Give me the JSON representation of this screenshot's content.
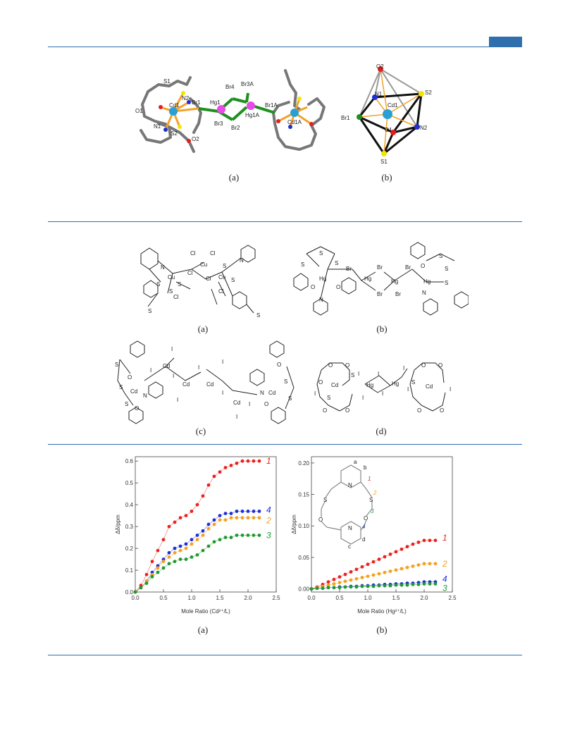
{
  "fig1": {
    "caption_a": "(a)",
    "caption_b": "(b)",
    "labels_a": {
      "s1": "S1",
      "n2": "N2",
      "cd1": "Cd1",
      "o1": "O1",
      "br1": "Br1",
      "hg1": "Hg1",
      "br4": "Br4",
      "br3a": "Br3A",
      "hg1a": "Hg1A",
      "br1a": "Br1A",
      "cd1a": "Cd1A",
      "br3": "Br3",
      "br2": "Br2",
      "n1": "N1",
      "s2": "S2",
      "o2": "O2"
    },
    "labels_b": {
      "o2": "O2",
      "n1": "N1",
      "s2": "S2",
      "cd1": "Cd1",
      "br1": "Br1",
      "o1": "O1",
      "n2": "N2",
      "s1": "S1"
    },
    "colors": {
      "bond": "#777777",
      "cd": "#2a9fd6",
      "hg": "#e64ce6",
      "br": "#1f8f1f",
      "s": "#f2e600",
      "n": "#1f2fd0",
      "o": "#e02020",
      "metal_bond": "#f2a22a"
    }
  },
  "fig2": {
    "caption_a": "(a)",
    "caption_b": "(b)",
    "caption_c": "(c)",
    "caption_d": "(d)",
    "a": {
      "cl": "Cl",
      "cu": "Cu",
      "s": "S",
      "n": "N"
    },
    "b": {
      "br": "Br",
      "hg": "Hg",
      "s": "S",
      "o": "O",
      "n": "N"
    },
    "c": {
      "i": "I",
      "cd": "Cd",
      "s": "S",
      "o": "O",
      "n": "N"
    },
    "d": {
      "i": "I",
      "cd": "Cd",
      "hg": "Hg",
      "s": "S",
      "o": "O"
    }
  },
  "fig3": {
    "caption_a": "(a)",
    "caption_b": "(b)",
    "inset_labels": {
      "a": "a",
      "b": "b",
      "c": "c",
      "d": "d",
      "n": "N",
      "s": "S",
      "o": "O",
      "n1": "1",
      "n2": "2",
      "n3": "3",
      "n4": "4"
    }
  },
  "chart_data": [
    {
      "type": "scatter",
      "title": "",
      "xlabel": "Mole Ratio (Cd²⁺/L)",
      "ylabel": "Δδ/ppm",
      "xlim": [
        0.0,
        2.5
      ],
      "ylim": [
        0.0,
        0.62
      ],
      "xticks": [
        "0.0",
        "0.5",
        "1.0",
        "1.5",
        "2.0",
        "2.5"
      ],
      "yticks": [
        "0.0",
        "0.1",
        "0.2",
        "0.3",
        "0.4",
        "0.5",
        "0.6"
      ],
      "grid": false,
      "x": [
        0.0,
        0.1,
        0.2,
        0.3,
        0.4,
        0.5,
        0.6,
        0.7,
        0.8,
        0.9,
        1.0,
        1.1,
        1.2,
        1.3,
        1.4,
        1.5,
        1.6,
        1.7,
        1.8,
        1.9,
        2.0,
        2.1,
        2.2
      ],
      "series": [
        {
          "name": "1",
          "color": "#e8231f",
          "values": [
            0.0,
            0.03,
            0.08,
            0.14,
            0.19,
            0.24,
            0.3,
            0.32,
            0.34,
            0.35,
            0.37,
            0.4,
            0.44,
            0.49,
            0.53,
            0.55,
            0.57,
            0.58,
            0.59,
            0.6,
            0.6,
            0.6,
            0.6
          ]
        },
        {
          "name": "4",
          "color": "#1f2fd8",
          "values": [
            0.0,
            0.02,
            0.05,
            0.09,
            0.12,
            0.15,
            0.18,
            0.2,
            0.21,
            0.22,
            0.24,
            0.26,
            0.28,
            0.31,
            0.33,
            0.35,
            0.36,
            0.36,
            0.37,
            0.37,
            0.37,
            0.37,
            0.37
          ]
        },
        {
          "name": "2",
          "color": "#f4a11f",
          "values": [
            0.0,
            0.02,
            0.05,
            0.08,
            0.11,
            0.14,
            0.16,
            0.18,
            0.19,
            0.2,
            0.22,
            0.24,
            0.26,
            0.29,
            0.31,
            0.33,
            0.33,
            0.34,
            0.34,
            0.34,
            0.34,
            0.34,
            0.34
          ]
        },
        {
          "name": "3",
          "color": "#1f9a2f",
          "values": [
            0.0,
            0.02,
            0.04,
            0.07,
            0.09,
            0.11,
            0.13,
            0.14,
            0.15,
            0.15,
            0.16,
            0.17,
            0.19,
            0.21,
            0.23,
            0.24,
            0.25,
            0.25,
            0.26,
            0.26,
            0.26,
            0.26,
            0.26
          ]
        }
      ]
    },
    {
      "type": "scatter",
      "title": "",
      "xlabel": "Mole Ratio (Hg²⁺/L)",
      "ylabel": "Δδ/ppm",
      "xlim": [
        0.0,
        2.5
      ],
      "ylim": [
        -0.005,
        0.21
      ],
      "xticks": [
        "0.0",
        "0.5",
        "1.0",
        "1.5",
        "2.0",
        "2.5"
      ],
      "yticks": [
        "0.00",
        "0.05",
        "0.10",
        "0.15",
        "0.20"
      ],
      "grid": false,
      "x": [
        0.0,
        0.1,
        0.2,
        0.3,
        0.4,
        0.5,
        0.6,
        0.7,
        0.8,
        0.9,
        1.0,
        1.1,
        1.2,
        1.3,
        1.4,
        1.5,
        1.6,
        1.7,
        1.8,
        1.9,
        2.0,
        2.1,
        2.2
      ],
      "series": [
        {
          "name": "1",
          "color": "#e8231f",
          "values": [
            0.0,
            0.003,
            0.007,
            0.011,
            0.015,
            0.019,
            0.023,
            0.027,
            0.031,
            0.035,
            0.039,
            0.043,
            0.047,
            0.051,
            0.055,
            0.059,
            0.063,
            0.067,
            0.071,
            0.074,
            0.077,
            0.077,
            0.077
          ]
        },
        {
          "name": "2",
          "color": "#f4a11f",
          "values": [
            0.0,
            0.002,
            0.004,
            0.006,
            0.008,
            0.01,
            0.012,
            0.014,
            0.016,
            0.018,
            0.02,
            0.022,
            0.024,
            0.026,
            0.028,
            0.03,
            0.032,
            0.034,
            0.036,
            0.038,
            0.04,
            0.04,
            0.04
          ]
        },
        {
          "name": "4",
          "color": "#1f2fd8",
          "values": [
            0.0,
            0.001,
            0.001,
            0.002,
            0.002,
            0.003,
            0.003,
            0.004,
            0.004,
            0.005,
            0.005,
            0.006,
            0.006,
            0.007,
            0.007,
            0.008,
            0.008,
            0.009,
            0.009,
            0.01,
            0.011,
            0.011,
            0.011
          ]
        },
        {
          "name": "3",
          "color": "#1f9a2f",
          "values": [
            0.0,
            0.001,
            0.001,
            0.002,
            0.002,
            0.002,
            0.003,
            0.003,
            0.003,
            0.004,
            0.004,
            0.004,
            0.005,
            0.005,
            0.005,
            0.006,
            0.006,
            0.006,
            0.007,
            0.007,
            0.008,
            0.008,
            0.008
          ]
        }
      ]
    }
  ]
}
